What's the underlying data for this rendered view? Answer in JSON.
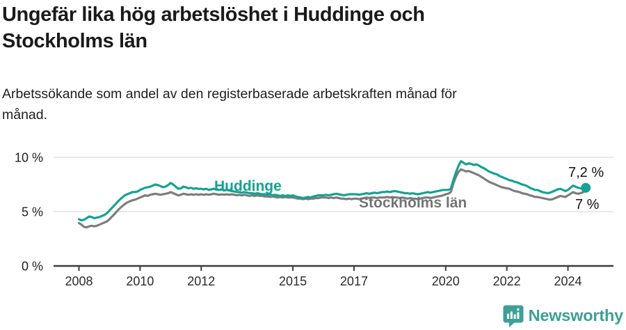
{
  "header": {
    "title": "Ungefär lika hög arbetslöshet i Huddinge och Stockholms län",
    "title_lines": [
      "Ungefär lika hög arbetslöshet i Huddinge och",
      "Stockholms län"
    ],
    "subtitle": "Arbetssökande som andel av den registerbaserade arbetskraften månad för månad.",
    "subtitle_lines": [
      "Arbetssökande som andel av den registerbaserade arbetskraften månad för",
      "månad."
    ]
  },
  "chart_data": {
    "type": "line",
    "title": "Ungefär lika hög arbetslöshet i Huddinge och Stockholms län",
    "subtitle": "Arbetssökande som andel av den registerbaserade arbetskraften månad för månad.",
    "frequency": "monthly",
    "x_start": "2008-01",
    "x_end": "2024-08",
    "x_ticks": [
      2008,
      2010,
      2012,
      2015,
      2017,
      2020,
      2022,
      2024
    ],
    "y_ticks": [
      0,
      5,
      10
    ],
    "y_tick_suffix": " %",
    "ylim": [
      0,
      12
    ],
    "grid": "horizontal",
    "legend_position": "inline-labels",
    "end_dot_series": "Huddinge",
    "series": [
      {
        "name": "Stockholms län",
        "color": "#7d7d7d",
        "values": [
          3.95,
          3.8,
          3.6,
          3.55,
          3.65,
          3.7,
          3.65,
          3.7,
          3.8,
          3.9,
          4.0,
          4.1,
          4.3,
          4.55,
          4.8,
          5.05,
          5.3,
          5.5,
          5.7,
          5.85,
          5.95,
          6.05,
          6.1,
          6.2,
          6.3,
          6.4,
          6.5,
          6.45,
          6.55,
          6.6,
          6.65,
          6.6,
          6.55,
          6.6,
          6.65,
          6.7,
          6.8,
          6.7,
          6.6,
          6.5,
          6.55,
          6.65,
          6.6,
          6.55,
          6.6,
          6.55,
          6.6,
          6.55,
          6.6,
          6.55,
          6.6,
          6.55,
          6.6,
          6.65,
          6.6,
          6.55,
          6.6,
          6.55,
          6.6,
          6.55,
          6.6,
          6.55,
          6.5,
          6.55,
          6.5,
          6.55,
          6.5,
          6.45,
          6.5,
          6.45,
          6.5,
          6.45,
          6.45,
          6.4,
          6.4,
          6.35,
          6.4,
          6.35,
          6.3,
          6.35,
          6.3,
          6.35,
          6.3,
          6.3,
          6.3,
          6.25,
          6.2,
          6.2,
          6.15,
          6.2,
          6.15,
          6.2,
          6.2,
          6.25,
          6.25,
          6.3,
          6.3,
          6.3,
          6.25,
          6.3,
          6.25,
          6.3,
          6.25,
          6.2,
          6.2,
          6.15,
          6.2,
          6.15,
          6.2,
          6.2,
          6.15,
          6.2,
          6.25,
          6.3,
          6.25,
          6.3,
          6.3,
          6.25,
          6.3,
          6.3,
          6.3,
          6.35,
          6.3,
          6.35,
          6.3,
          6.3,
          6.25,
          6.3,
          6.25,
          6.2,
          6.25,
          6.2,
          6.2,
          6.15,
          6.2,
          6.25,
          6.3,
          6.3,
          6.25,
          6.3,
          6.35,
          6.4,
          6.45,
          6.5,
          6.6,
          6.65,
          6.8,
          7.6,
          8.2,
          8.65,
          8.9,
          8.8,
          8.7,
          8.75,
          8.65,
          8.55,
          8.45,
          8.35,
          8.2,
          8.05,
          7.9,
          7.75,
          7.65,
          7.55,
          7.45,
          7.35,
          7.25,
          7.2,
          7.15,
          7.1,
          7.0,
          6.9,
          6.85,
          6.8,
          6.7,
          6.65,
          6.6,
          6.5,
          6.45,
          6.35,
          6.35,
          6.3,
          6.25,
          6.2,
          6.15,
          6.1,
          6.15,
          6.25,
          6.35,
          6.45,
          6.4,
          6.35,
          6.5,
          6.65,
          6.8,
          6.7,
          6.65,
          6.7,
          6.8,
          7.0
        ]
      },
      {
        "name": "Huddinge",
        "color": "#16a191",
        "values": [
          4.3,
          4.2,
          4.25,
          4.4,
          4.55,
          4.5,
          4.4,
          4.45,
          4.5,
          4.6,
          4.7,
          4.85,
          5.1,
          5.35,
          5.6,
          5.85,
          6.1,
          6.3,
          6.5,
          6.6,
          6.7,
          6.8,
          6.8,
          6.85,
          7.0,
          7.1,
          7.2,
          7.25,
          7.3,
          7.4,
          7.5,
          7.45,
          7.35,
          7.25,
          7.3,
          7.45,
          7.65,
          7.5,
          7.3,
          7.1,
          7.15,
          7.3,
          7.25,
          7.15,
          7.2,
          7.1,
          7.15,
          7.1,
          7.1,
          7.05,
          7.1,
          7.0,
          7.05,
          7.1,
          7.05,
          7.0,
          7.05,
          6.95,
          7.0,
          6.95,
          6.9,
          6.85,
          6.8,
          6.8,
          6.75,
          6.8,
          6.75,
          6.7,
          6.7,
          6.65,
          6.7,
          6.65,
          6.6,
          6.6,
          6.55,
          6.6,
          6.5,
          6.55,
          6.5,
          6.45,
          6.5,
          6.45,
          6.5,
          6.45,
          6.5,
          6.4,
          6.35,
          6.3,
          6.25,
          6.3,
          6.35,
          6.3,
          6.4,
          6.45,
          6.5,
          6.5,
          6.5,
          6.55,
          6.5,
          6.55,
          6.6,
          6.65,
          6.6,
          6.55,
          6.5,
          6.55,
          6.6,
          6.6,
          6.6,
          6.6,
          6.55,
          6.6,
          6.65,
          6.7,
          6.65,
          6.7,
          6.75,
          6.7,
          6.75,
          6.8,
          6.8,
          6.85,
          6.8,
          6.85,
          6.9,
          6.85,
          6.8,
          6.75,
          6.7,
          6.7,
          6.65,
          6.7,
          6.65,
          6.6,
          6.65,
          6.7,
          6.75,
          6.8,
          6.75,
          6.8,
          6.85,
          6.9,
          6.95,
          7.0,
          7.0,
          7.0,
          7.1,
          7.9,
          8.6,
          9.2,
          9.65,
          9.5,
          9.35,
          9.45,
          9.4,
          9.3,
          9.35,
          9.25,
          9.1,
          9.0,
          8.85,
          8.7,
          8.6,
          8.5,
          8.45,
          8.3,
          8.2,
          8.1,
          8.0,
          7.9,
          7.85,
          7.75,
          7.7,
          7.6,
          7.5,
          7.45,
          7.35,
          7.2,
          7.1,
          7.0,
          7.0,
          6.9,
          6.8,
          6.75,
          6.7,
          6.75,
          6.85,
          6.95,
          7.05,
          7.1,
          7.0,
          6.9,
          7.0,
          7.2,
          7.4,
          7.3,
          7.2,
          7.15,
          7.1,
          7.2
        ]
      }
    ],
    "end_labels": [
      {
        "series": "Huddinge",
        "text": "7,2 %",
        "value": 7.2
      },
      {
        "series": "Stockholms län",
        "text": "7 %",
        "value": 7.0
      }
    ]
  },
  "footer": {
    "brand": "Newsworthy",
    "brand_color": "#3f9e96"
  },
  "colors": {
    "accent_teal": "#16a191",
    "series_gray": "#7d7d7d",
    "axis": "#3c3c3c",
    "gridline": "#dcdcdc",
    "text": "#1a1a1a"
  }
}
